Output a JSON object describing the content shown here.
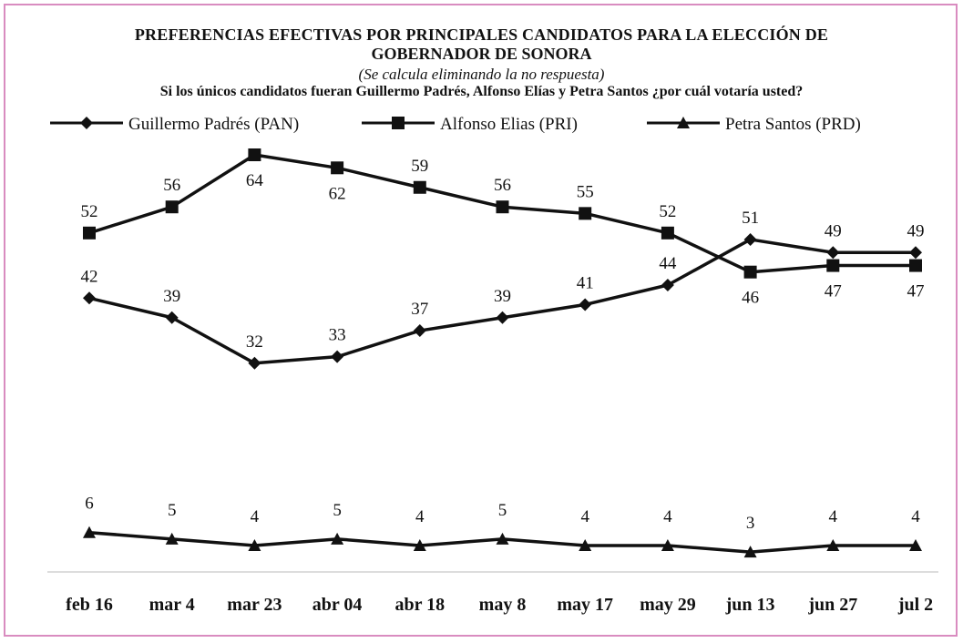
{
  "chart_data": {
    "type": "line",
    "title": "PREFERENCIAS EFECTIVAS POR PRINCIPALES CANDIDATOS PARA LA ELECCIÓN DE",
    "title_line2": "GOBERNADOR DE SONORA",
    "subtitle": "(Se calcula eliminando la no respuesta)",
    "question": "Si los únicos candidatos fueran Guillermo Padrés, Alfonso Elías y Petra Santos ¿por cuál votaría usted?",
    "categories": [
      "feb 16",
      "mar 4",
      "mar 23",
      "abr 04",
      "abr 18",
      "may 8",
      "may 17",
      "may 29",
      "jun 13",
      "jun 27",
      "jul 2"
    ],
    "series": [
      {
        "name": "Guillermo Padrés (PAN)",
        "marker": "diamond",
        "values": [
          42,
          39,
          32,
          33,
          37,
          39,
          41,
          44,
          51,
          49,
          49
        ]
      },
      {
        "name": "Alfonso Elias (PRI)",
        "marker": "square",
        "values": [
          52,
          56,
          64,
          62,
          59,
          56,
          55,
          52,
          46,
          47,
          47
        ]
      },
      {
        "name": "Petra Santos (PRD)",
        "marker": "triangle",
        "values": [
          6,
          5,
          4,
          5,
          4,
          5,
          4,
          4,
          3,
          4,
          4
        ]
      }
    ],
    "legend_position": "top",
    "grid": false,
    "ylim": [
      0,
      70
    ],
    "colors": {
      "line": "#111111",
      "frame": "#d98cc0"
    }
  }
}
